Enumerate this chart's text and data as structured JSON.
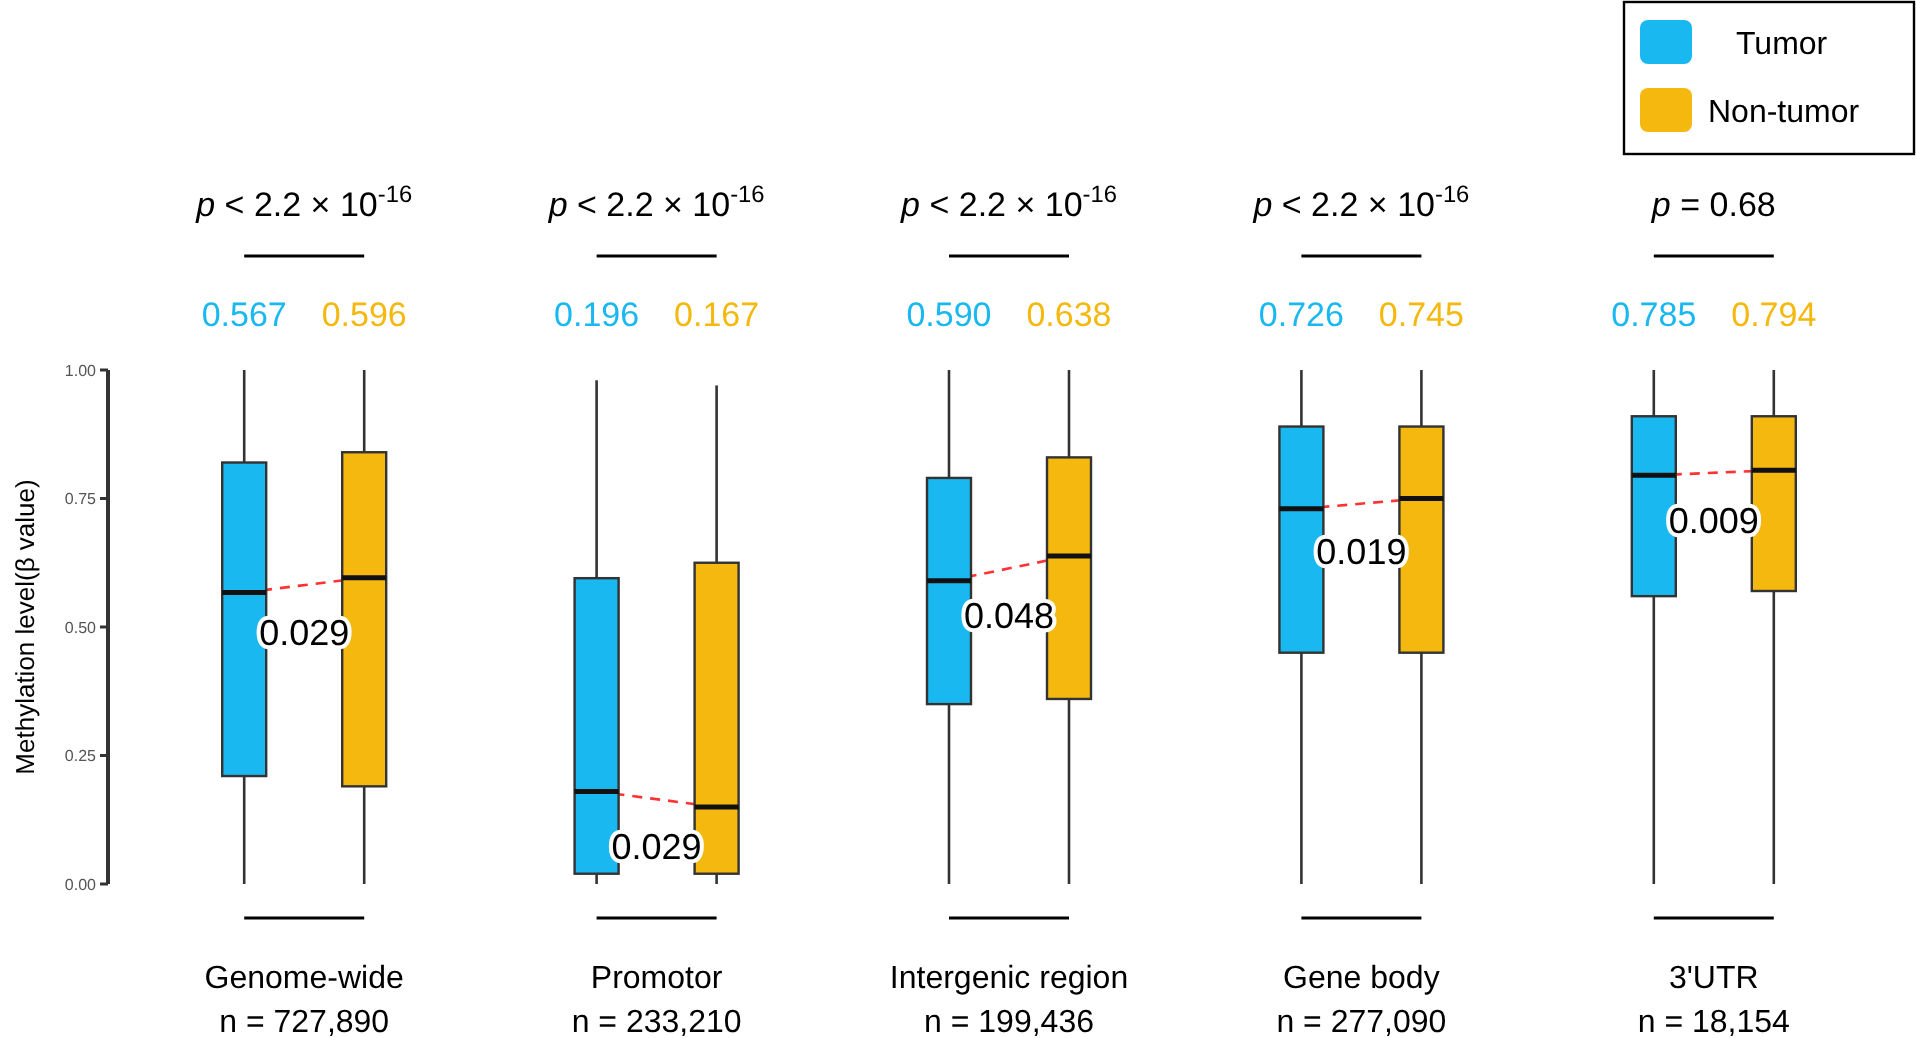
{
  "chart_data": {
    "type": "box",
    "ylabel": "Methylation level(β value)",
    "categories": [
      "Genome-wide\nn = 727,890",
      "Promotor\nn = 233,210",
      "Intergenic region\nn = 199,436",
      "Gene body\nn = 277,090",
      "3'UTR\nn = 18,154"
    ],
    "series": [
      {
        "name": "Tumor",
        "color": "#1ab8f0",
        "boxes": [
          {
            "low": 0,
            "q1": 0.21,
            "median": 0.567,
            "q3": 0.82,
            "high": 1
          },
          {
            "low": 0,
            "q1": 0.02,
            "median": 0.18,
            "q3": 0.595,
            "high": 0.98
          },
          {
            "low": 0,
            "q1": 0.35,
            "median": 0.59,
            "q3": 0.79,
            "high": 1
          },
          {
            "low": 0,
            "q1": 0.45,
            "median": 0.73,
            "q3": 0.89,
            "high": 1
          },
          {
            "low": 0,
            "q1": 0.56,
            "median": 0.795,
            "q3": 0.91,
            "high": 1
          }
        ]
      },
      {
        "name": "Non-tumor",
        "color": "#f5b80f",
        "boxes": [
          {
            "low": 0,
            "q1": 0.19,
            "median": 0.596,
            "q3": 0.84,
            "high": 1
          },
          {
            "low": 0,
            "q1": 0.02,
            "median": 0.15,
            "q3": 0.625,
            "high": 0.97
          },
          {
            "low": 0,
            "q1": 0.36,
            "median": 0.638,
            "q3": 0.83,
            "high": 1
          },
          {
            "low": 0,
            "q1": 0.45,
            "median": 0.75,
            "q3": 0.89,
            "high": 1
          },
          {
            "low": 0,
            "q1": 0.57,
            "median": 0.805,
            "q3": 0.91,
            "high": 1
          }
        ]
      }
    ],
    "ylim": [
      0,
      1
    ],
    "yticks": [
      {
        "value": 0,
        "label": "0.00"
      },
      {
        "value": 0.25,
        "label": "0.25"
      },
      {
        "value": 0.5,
        "label": "0.50"
      },
      {
        "value": 0.75,
        "label": "0.75"
      },
      {
        "value": 1,
        "label": "1.00"
      }
    ],
    "grid": false,
    "legend": "top right",
    "annotations": [
      "p < 2.2 × 10$^{-16}$",
      "p < 2.2 × 10$^{-16}$",
      "p < 2.2 × 10$^{-16}$",
      "p < 2.2 × 10$^{-16}$",
      "p = 0.68",
      "0.029",
      "0.029",
      "0.048",
      "0.019",
      "0.009",
      "0.567",
      "0.196",
      "0.590",
      "0.726",
      "0.785",
      "0.596",
      "0.167",
      "0.638",
      "0.745",
      "0.794"
    ]
  }
}
